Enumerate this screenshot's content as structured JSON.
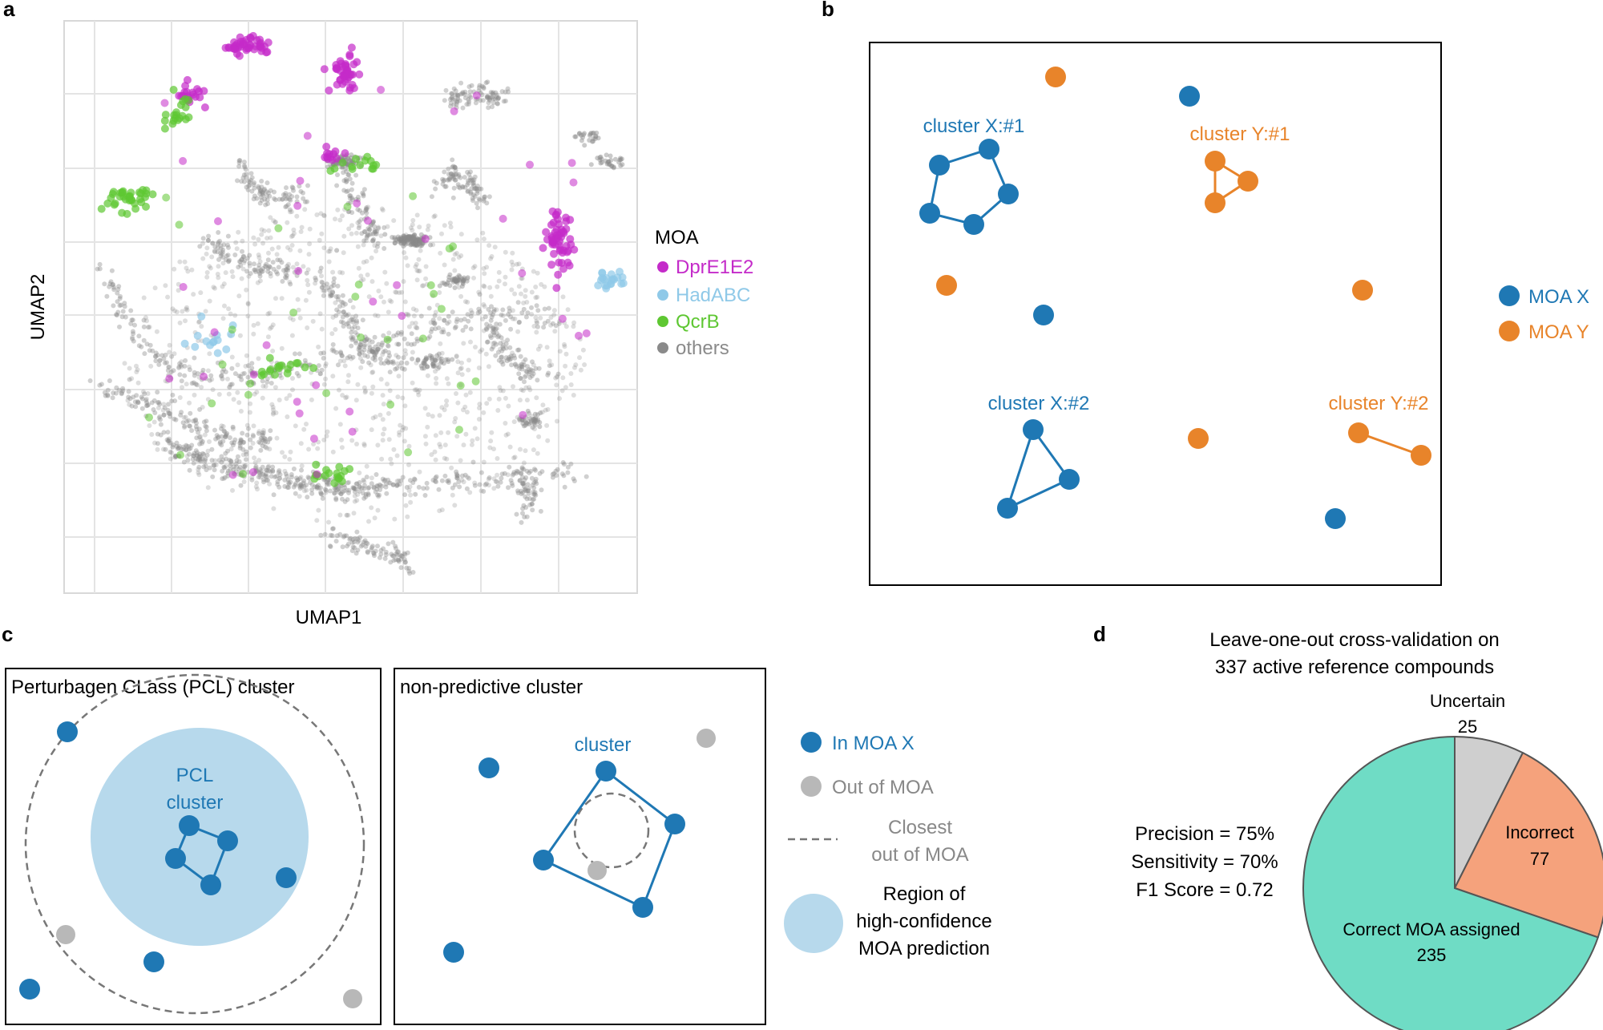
{
  "panel_labels": {
    "a": "a",
    "b": "b",
    "c": "c",
    "d": "d"
  },
  "colors": {
    "dpr": "#c42bc9",
    "had": "#8fc9e8",
    "qcr": "#5ec732",
    "others": "#8a8a8a",
    "moa_x": "#1f78b4",
    "moa_y": "#e8842a",
    "out": "#b8b8b8",
    "region": "#b7d9ec",
    "correct": "#6fdcc5",
    "incorrect": "#f5a27c",
    "uncertain": "#cfcfcf"
  },
  "panel_a": {
    "xlabel": "UMAP1",
    "ylabel": "UMAP2",
    "legend": {
      "title": "MOA",
      "items": [
        {
          "label": "DprE1E2",
          "color": "#c42bc9"
        },
        {
          "label": "HadABC",
          "color": "#8fc9e8"
        },
        {
          "label": "QcrB",
          "color": "#5ec732"
        },
        {
          "label": "others",
          "color": "#8a8a8a"
        }
      ]
    }
  },
  "panel_b": {
    "cluster_x1": "cluster X:#1",
    "cluster_y1": "cluster Y:#1",
    "cluster_x2": "cluster X:#2",
    "cluster_y2": "cluster Y:#2",
    "legend": [
      {
        "label": "MOA X",
        "color": "#1f78b4"
      },
      {
        "label": "MOA Y",
        "color": "#e8842a"
      }
    ]
  },
  "panel_c": {
    "left_title": "Perturbagen CLass (PCL) cluster",
    "pcl_line1": "PCL",
    "pcl_line2": "cluster",
    "right_title": "non-predictive cluster",
    "cluster_label": "cluster",
    "legend": {
      "in_moa": "In MOA X",
      "out_moa": "Out of MOA",
      "closest_line1": "Closest",
      "closest_line2": "out of MOA",
      "region_line1": "Region of",
      "region_line2": "high-confidence",
      "region_line3": "MOA prediction"
    }
  },
  "panel_d": {
    "title_line1": "Leave-one-out cross-validation on",
    "title_line2": "337 active reference compounds",
    "stats": {
      "precision": "Precision = 75%",
      "sensitivity": "Sensitivity = 70%",
      "f1": "F1 Score = 0.72"
    },
    "chart_data": {
      "type": "pie",
      "title": "Leave-one-out cross-validation on 337 active reference compounds",
      "slices": [
        {
          "label": "Uncertain",
          "value": 25,
          "color": "#cfcfcf"
        },
        {
          "label": "Incorrect",
          "value": 77,
          "color": "#f5a27c"
        },
        {
          "label": "Correct MOA assigned",
          "value": 235,
          "color": "#6fdcc5"
        }
      ],
      "total": 337
    }
  }
}
